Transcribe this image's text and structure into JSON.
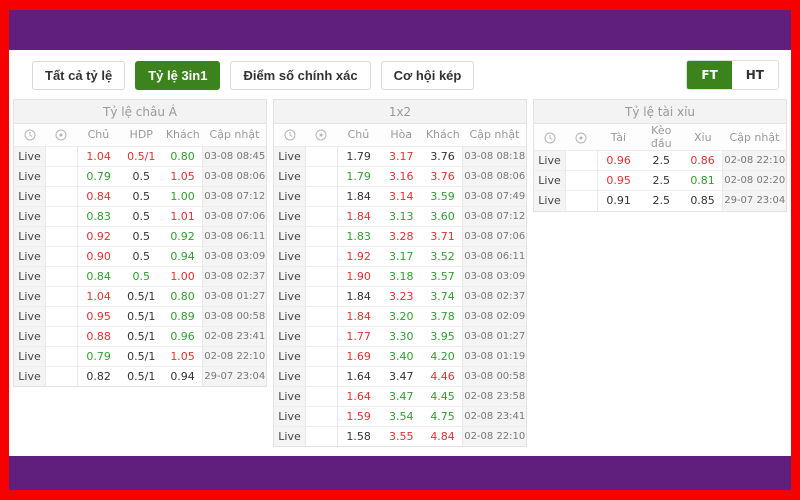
{
  "colors": {
    "frame_red": "#f60000",
    "banner_purple": "#611f7d",
    "accent_green": "#3d831d",
    "odds_green": "#2f9e2f",
    "odds_red": "#e03232"
  },
  "toolbar": {
    "tabs": [
      {
        "label": "Tất cả tỷ lệ",
        "active": false
      },
      {
        "label": "Tỷ lệ 3in1",
        "active": true
      },
      {
        "label": "Điểm số chính xác",
        "active": false
      },
      {
        "label": "Cơ hội kép",
        "active": false
      }
    ],
    "period": [
      {
        "label": "FT",
        "active": true
      },
      {
        "label": "HT",
        "active": false
      }
    ]
  },
  "tables": [
    {
      "title": "Tỷ lệ châu Á",
      "columns": [
        "Chủ",
        "HDP",
        "Khách",
        "Cập nhật"
      ],
      "header_icons": [
        "clock-icon",
        "target-icon"
      ],
      "rows": [
        {
          "status": "Live",
          "cells": [
            {
              "v": "1.04",
              "c": "red"
            },
            {
              "v": "0.5/1",
              "c": "red"
            },
            {
              "v": "0.80",
              "c": "green"
            }
          ],
          "updated": "03-08 08:45"
        },
        {
          "status": "Live",
          "cells": [
            {
              "v": "0.79",
              "c": "green"
            },
            {
              "v": "0.5",
              "c": "black"
            },
            {
              "v": "1.05",
              "c": "red"
            }
          ],
          "updated": "03-08 08:06"
        },
        {
          "status": "Live",
          "cells": [
            {
              "v": "0.84",
              "c": "red"
            },
            {
              "v": "0.5",
              "c": "black"
            },
            {
              "v": "1.00",
              "c": "green"
            }
          ],
          "updated": "03-08 07:12"
        },
        {
          "status": "Live",
          "cells": [
            {
              "v": "0.83",
              "c": "green"
            },
            {
              "v": "0.5",
              "c": "black"
            },
            {
              "v": "1.01",
              "c": "red"
            }
          ],
          "updated": "03-08 07:06"
        },
        {
          "status": "Live",
          "cells": [
            {
              "v": "0.92",
              "c": "red"
            },
            {
              "v": "0.5",
              "c": "black"
            },
            {
              "v": "0.92",
              "c": "green"
            }
          ],
          "updated": "03-08 06:11"
        },
        {
          "status": "Live",
          "cells": [
            {
              "v": "0.90",
              "c": "red"
            },
            {
              "v": "0.5",
              "c": "black"
            },
            {
              "v": "0.94",
              "c": "green"
            }
          ],
          "updated": "03-08 03:09"
        },
        {
          "status": "Live",
          "cells": [
            {
              "v": "0.84",
              "c": "green"
            },
            {
              "v": "0.5",
              "c": "green"
            },
            {
              "v": "1.00",
              "c": "red"
            }
          ],
          "updated": "03-08 02:37"
        },
        {
          "status": "Live",
          "cells": [
            {
              "v": "1.04",
              "c": "red"
            },
            {
              "v": "0.5/1",
              "c": "black"
            },
            {
              "v": "0.80",
              "c": "green"
            }
          ],
          "updated": "03-08 01:27"
        },
        {
          "status": "Live",
          "cells": [
            {
              "v": "0.95",
              "c": "red"
            },
            {
              "v": "0.5/1",
              "c": "black"
            },
            {
              "v": "0.89",
              "c": "green"
            }
          ],
          "updated": "03-08 00:58"
        },
        {
          "status": "Live",
          "cells": [
            {
              "v": "0.88",
              "c": "red"
            },
            {
              "v": "0.5/1",
              "c": "black"
            },
            {
              "v": "0.96",
              "c": "green"
            }
          ],
          "updated": "02-08 23:41"
        },
        {
          "status": "Live",
          "cells": [
            {
              "v": "0.79",
              "c": "green"
            },
            {
              "v": "0.5/1",
              "c": "black"
            },
            {
              "v": "1.05",
              "c": "red"
            }
          ],
          "updated": "02-08 22:10"
        },
        {
          "status": "Live",
          "cells": [
            {
              "v": "0.82",
              "c": "black"
            },
            {
              "v": "0.5/1",
              "c": "black"
            },
            {
              "v": "0.94",
              "c": "black"
            }
          ],
          "updated": "29-07 23:04"
        }
      ]
    },
    {
      "title": "1x2",
      "columns": [
        "Chủ",
        "Hòa",
        "Khách",
        "Cập nhật"
      ],
      "header_icons": [
        "clock-icon",
        "target-icon"
      ],
      "rows": [
        {
          "status": "Live",
          "cells": [
            {
              "v": "1.79",
              "c": "black"
            },
            {
              "v": "3.17",
              "c": "red"
            },
            {
              "v": "3.76",
              "c": "black"
            }
          ],
          "updated": "03-08 08:18"
        },
        {
          "status": "Live",
          "cells": [
            {
              "v": "1.79",
              "c": "green"
            },
            {
              "v": "3.16",
              "c": "red"
            },
            {
              "v": "3.76",
              "c": "red"
            }
          ],
          "updated": "03-08 08:06"
        },
        {
          "status": "Live",
          "cells": [
            {
              "v": "1.84",
              "c": "black"
            },
            {
              "v": "3.14",
              "c": "red"
            },
            {
              "v": "3.59",
              "c": "green"
            }
          ],
          "updated": "03-08 07:49"
        },
        {
          "status": "Live",
          "cells": [
            {
              "v": "1.84",
              "c": "red"
            },
            {
              "v": "3.13",
              "c": "green"
            },
            {
              "v": "3.60",
              "c": "green"
            }
          ],
          "updated": "03-08 07:12"
        },
        {
          "status": "Live",
          "cells": [
            {
              "v": "1.83",
              "c": "green"
            },
            {
              "v": "3.28",
              "c": "red"
            },
            {
              "v": "3.71",
              "c": "red"
            }
          ],
          "updated": "03-08 07:06"
        },
        {
          "status": "Live",
          "cells": [
            {
              "v": "1.92",
              "c": "red"
            },
            {
              "v": "3.17",
              "c": "green"
            },
            {
              "v": "3.52",
              "c": "green"
            }
          ],
          "updated": "03-08 06:11"
        },
        {
          "status": "Live",
          "cells": [
            {
              "v": "1.90",
              "c": "red"
            },
            {
              "v": "3.18",
              "c": "green"
            },
            {
              "v": "3.57",
              "c": "green"
            }
          ],
          "updated": "03-08 03:09"
        },
        {
          "status": "Live",
          "cells": [
            {
              "v": "1.84",
              "c": "black"
            },
            {
              "v": "3.23",
              "c": "red"
            },
            {
              "v": "3.74",
              "c": "green"
            }
          ],
          "updated": "03-08 02:37"
        },
        {
          "status": "Live",
          "cells": [
            {
              "v": "1.84",
              "c": "red"
            },
            {
              "v": "3.20",
              "c": "green"
            },
            {
              "v": "3.78",
              "c": "green"
            }
          ],
          "updated": "03-08 02:09"
        },
        {
          "status": "Live",
          "cells": [
            {
              "v": "1.77",
              "c": "red"
            },
            {
              "v": "3.30",
              "c": "green"
            },
            {
              "v": "3.95",
              "c": "green"
            }
          ],
          "updated": "03-08 01:27"
        },
        {
          "status": "Live",
          "cells": [
            {
              "v": "1.69",
              "c": "red"
            },
            {
              "v": "3.40",
              "c": "green"
            },
            {
              "v": "4.20",
              "c": "green"
            }
          ],
          "updated": "03-08 01:19"
        },
        {
          "status": "Live",
          "cells": [
            {
              "v": "1.64",
              "c": "black"
            },
            {
              "v": "3.47",
              "c": "black"
            },
            {
              "v": "4.46",
              "c": "red"
            }
          ],
          "updated": "03-08 00:58"
        },
        {
          "status": "Live",
          "cells": [
            {
              "v": "1.64",
              "c": "red"
            },
            {
              "v": "3.47",
              "c": "green"
            },
            {
              "v": "4.45",
              "c": "green"
            }
          ],
          "updated": "02-08 23:58"
        },
        {
          "status": "Live",
          "cells": [
            {
              "v": "1.59",
              "c": "red"
            },
            {
              "v": "3.54",
              "c": "green"
            },
            {
              "v": "4.75",
              "c": "green"
            }
          ],
          "updated": "02-08 23:41"
        },
        {
          "status": "Live",
          "cells": [
            {
              "v": "1.58",
              "c": "black"
            },
            {
              "v": "3.55",
              "c": "red"
            },
            {
              "v": "4.84",
              "c": "red"
            }
          ],
          "updated": "02-08 22:10"
        }
      ]
    },
    {
      "title": "Tỷ lệ tài xỉu",
      "columns": [
        "Tài",
        "Kèo đầu",
        "Xỉu",
        "Cập nhật"
      ],
      "header_icons": [
        "clock-icon",
        "target-icon"
      ],
      "rows": [
        {
          "status": "Live",
          "cells": [
            {
              "v": "0.96",
              "c": "red"
            },
            {
              "v": "2.5",
              "c": "black"
            },
            {
              "v": "0.86",
              "c": "red"
            }
          ],
          "updated": "02-08 22:10"
        },
        {
          "status": "Live",
          "cells": [
            {
              "v": "0.95",
              "c": "red"
            },
            {
              "v": "2.5",
              "c": "black"
            },
            {
              "v": "0.81",
              "c": "green"
            }
          ],
          "updated": "02-08 02:20"
        },
        {
          "status": "Live",
          "cells": [
            {
              "v": "0.91",
              "c": "black"
            },
            {
              "v": "2.5",
              "c": "black"
            },
            {
              "v": "0.85",
              "c": "black"
            }
          ],
          "updated": "29-07 23:04"
        }
      ]
    }
  ]
}
